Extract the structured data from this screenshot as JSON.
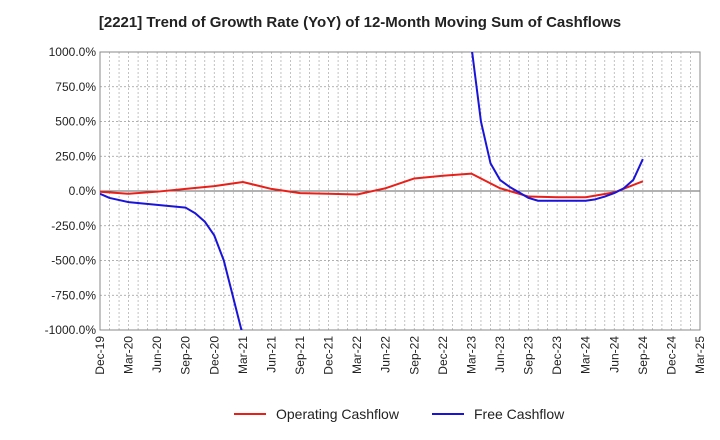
{
  "chart_data": {
    "type": "line",
    "title": "[2221]  Trend of Growth Rate (YoY) of 12-Month Moving Sum of Cashflows",
    "xlabel": "",
    "ylabel": "",
    "ylim": [
      -1000,
      1000
    ],
    "y_ticks": [
      1000,
      750,
      500,
      250,
      0,
      -250,
      -500,
      -750,
      -1000
    ],
    "y_tick_labels": [
      "1000.0%",
      "750.0%",
      "500.0%",
      "250.0%",
      "0.0%",
      "-250.0%",
      "-500.0%",
      "-750.0%",
      "-1000.0%"
    ],
    "x_labels": [
      "Dec-19",
      "Mar-20",
      "Jun-20",
      "Sep-20",
      "Dec-20",
      "Mar-21",
      "Jun-21",
      "Sep-21",
      "Dec-21",
      "Mar-22",
      "Jun-22",
      "Sep-22",
      "Dec-22",
      "Mar-23",
      "Jun-23",
      "Sep-23",
      "Dec-23",
      "Mar-24",
      "Jun-24",
      "Sep-24",
      "Dec-24",
      "Mar-25"
    ],
    "x_range": [
      "Dec-19",
      "Mar-25"
    ],
    "grid": true,
    "legend_position": "bottom",
    "series": [
      {
        "name": "Operating Cashflow",
        "color": "#e8201a",
        "points": [
          [
            "Dec-19",
            -5
          ],
          [
            "Mar-20",
            -20
          ],
          [
            "Jun-20",
            -5
          ],
          [
            "Sep-20",
            15
          ],
          [
            "Dec-20",
            35
          ],
          [
            "Mar-21",
            65
          ],
          [
            "Jun-21",
            15
          ],
          [
            "Sep-21",
            -15
          ],
          [
            "Dec-21",
            -20
          ],
          [
            "Mar-22",
            -25
          ],
          [
            "Jun-22",
            20
          ],
          [
            "Sep-22",
            90
          ],
          [
            "Dec-22",
            110
          ],
          [
            "Mar-23",
            125
          ],
          [
            "Jun-23",
            20
          ],
          [
            "Sep-23",
            -40
          ],
          [
            "Dec-23",
            -45
          ],
          [
            "Mar-24",
            -45
          ],
          [
            "Jun-24",
            -10
          ],
          [
            "Sep-24",
            70
          ]
        ]
      },
      {
        "name": "Free Cashflow",
        "color": "#1a14d9",
        "points": [
          [
            "Dec-19",
            -20
          ],
          [
            "Jan-20",
            -50
          ],
          [
            "Mar-20",
            -80
          ],
          [
            "Jun-20",
            -100
          ],
          [
            "Sep-20",
            -120
          ],
          [
            "Oct-20",
            -160
          ],
          [
            "Nov-20",
            -220
          ],
          [
            "Dec-20",
            -320
          ],
          [
            "Jan-21",
            -500
          ],
          [
            "Mar-21",
            -1040
          ]
        ],
        "points_2": [
          [
            "Mar-23",
            1040
          ],
          [
            "Apr-23",
            500
          ],
          [
            "May-23",
            200
          ],
          [
            "Jun-23",
            80
          ],
          [
            "Jul-23",
            30
          ],
          [
            "Aug-23",
            -10
          ],
          [
            "Sep-23",
            -50
          ],
          [
            "Oct-23",
            -70
          ],
          [
            "Dec-23",
            -70
          ],
          [
            "Mar-24",
            -70
          ],
          [
            "Apr-24",
            -60
          ],
          [
            "May-24",
            -40
          ],
          [
            "Jun-24",
            -15
          ],
          [
            "Jul-24",
            20
          ],
          [
            "Aug-24",
            80
          ],
          [
            "Sep-24",
            230
          ]
        ]
      }
    ]
  }
}
